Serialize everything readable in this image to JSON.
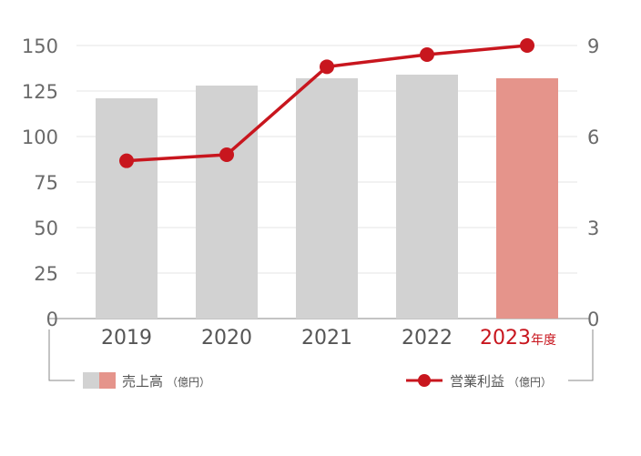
{
  "colors": {
    "bar": "#d2d2d2",
    "bar_highlight": "#e5948b",
    "line": "#c8161e",
    "highlight_text": "#c8161e",
    "grid": "#e4e4e4",
    "axis": "#8a8a8a",
    "text": "#555555"
  },
  "chart_data": {
    "type": "bar",
    "categories": [
      "2019",
      "2020",
      "2021",
      "2022",
      "2023"
    ],
    "highlight_index": 4,
    "category_suffix_last": "年度",
    "series": [
      {
        "name": "売上高",
        "unit": "（億円）",
        "type": "bar",
        "axis": "left",
        "values": [
          121,
          128,
          132,
          134,
          132
        ]
      },
      {
        "name": "営業利益",
        "unit": "（億円）",
        "type": "line",
        "axis": "right",
        "values": [
          5.2,
          5.4,
          8.3,
          8.7,
          9.0
        ]
      }
    ],
    "y_left": {
      "lim": [
        0,
        150
      ],
      "ticks": [
        0,
        25,
        50,
        75,
        100,
        125,
        150
      ]
    },
    "y_right": {
      "lim": [
        0,
        9
      ],
      "ticks": [
        0,
        3,
        6,
        9
      ]
    },
    "grid": true,
    "legend_position": "bottom"
  }
}
